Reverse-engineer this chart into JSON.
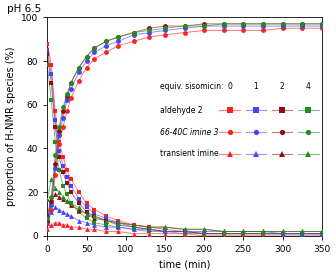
{
  "title": "pH 6.5",
  "xlabel": "time (min)",
  "ylabel": "proportion of H-NMR species (%)",
  "ylim": [
    0,
    100
  ],
  "xlim": [
    0,
    350
  ],
  "xticks": [
    0,
    50,
    100,
    150,
    200,
    250,
    300,
    350
  ],
  "yticks": [
    0,
    20,
    40,
    60,
    80,
    100
  ],
  "colors": {
    "0equiv": "#FF2020",
    "1equiv": "#4444FF",
    "2equiv": "#8B1010",
    "4equiv": "#228B22"
  },
  "line_alpha": 0.5,
  "aldehyde_data": {
    "0equiv": {
      "t": [
        0,
        5,
        10,
        15,
        20,
        25,
        30,
        40,
        50,
        60,
        75,
        90,
        110,
        130,
        150,
        175,
        200,
        225,
        250,
        275,
        300,
        325,
        350
      ],
      "v": [
        88,
        78,
        57,
        43,
        36,
        30,
        26,
        20,
        15,
        12,
        9,
        7,
        5,
        4,
        3,
        2,
        1,
        1,
        1,
        1,
        1,
        1,
        1
      ]
    },
    "1equiv": {
      "t": [
        0,
        5,
        10,
        15,
        20,
        25,
        30,
        40,
        50,
        60,
        75,
        90,
        110,
        130,
        150,
        175,
        200,
        225,
        250,
        275,
        300,
        325,
        350
      ],
      "v": [
        85,
        74,
        53,
        39,
        32,
        27,
        23,
        17,
        13,
        10,
        8,
        6,
        4,
        3,
        2,
        2,
        1,
        1,
        1,
        1,
        1,
        1,
        1
      ]
    },
    "2equiv": {
      "t": [
        0,
        5,
        10,
        15,
        20,
        25,
        30,
        40,
        50,
        60,
        75,
        90,
        110,
        130,
        150,
        175,
        200,
        225,
        250,
        275,
        300,
        325,
        350
      ],
      "v": [
        83,
        70,
        50,
        36,
        29,
        24,
        20,
        15,
        11,
        9,
        7,
        5,
        4,
        3,
        2,
        2,
        1,
        1,
        1,
        1,
        1,
        1,
        1
      ]
    },
    "4equiv": {
      "t": [
        0,
        5,
        10,
        15,
        20,
        25,
        30,
        40,
        50,
        60,
        75,
        90,
        110,
        130,
        150,
        175,
        200,
        225,
        250,
        275,
        300,
        325,
        350
      ],
      "v": [
        78,
        62,
        43,
        30,
        23,
        19,
        15,
        11,
        8,
        6,
        5,
        4,
        3,
        2,
        2,
        1,
        1,
        1,
        1,
        1,
        1,
        1,
        1
      ]
    }
  },
  "imine66_data": {
    "0equiv": {
      "t": [
        0,
        5,
        10,
        15,
        20,
        25,
        30,
        40,
        50,
        60,
        75,
        90,
        110,
        130,
        150,
        175,
        200,
        225,
        250,
        275,
        300,
        325,
        350
      ],
      "v": [
        6,
        12,
        28,
        42,
        50,
        57,
        63,
        71,
        77,
        81,
        84,
        87,
        89,
        91,
        92,
        93,
        94,
        94,
        94,
        94,
        95,
        95,
        95
      ]
    },
    "1equiv": {
      "t": [
        0,
        5,
        10,
        15,
        20,
        25,
        30,
        40,
        50,
        60,
        75,
        90,
        110,
        130,
        150,
        175,
        200,
        225,
        250,
        275,
        300,
        325,
        350
      ],
      "v": [
        7,
        14,
        31,
        46,
        54,
        62,
        67,
        75,
        80,
        84,
        87,
        89,
        92,
        93,
        94,
        95,
        96,
        96,
        96,
        96,
        96,
        96,
        96
      ]
    },
    "2equiv": {
      "t": [
        0,
        5,
        10,
        15,
        20,
        25,
        30,
        40,
        50,
        60,
        75,
        90,
        110,
        130,
        150,
        175,
        200,
        225,
        250,
        275,
        300,
        325,
        350
      ],
      "v": [
        7,
        16,
        33,
        48,
        57,
        64,
        70,
        77,
        82,
        86,
        89,
        91,
        93,
        95,
        96,
        96,
        97,
        97,
        97,
        97,
        97,
        97,
        97
      ]
    },
    "4equiv": {
      "t": [
        0,
        5,
        10,
        15,
        20,
        25,
        30,
        40,
        50,
        60,
        75,
        90,
        110,
        130,
        150,
        175,
        200,
        225,
        250,
        275,
        300,
        325,
        350
      ],
      "v": [
        8,
        18,
        37,
        50,
        59,
        65,
        70,
        77,
        82,
        86,
        89,
        91,
        93,
        94,
        95,
        96,
        96,
        97,
        97,
        97,
        97,
        97,
        97
      ]
    }
  },
  "transient_data": {
    "0equiv": {
      "t": [
        0,
        5,
        10,
        15,
        20,
        25,
        30,
        40,
        50,
        60,
        75,
        90,
        110,
        130,
        150,
        175,
        200,
        225,
        250,
        275,
        300,
        325,
        350
      ],
      "v": [
        3,
        5,
        6,
        6,
        5,
        5,
        4,
        4,
        3,
        3,
        2,
        2,
        1,
        1,
        1,
        1,
        0,
        0,
        0,
        0,
        0,
        0,
        0
      ]
    },
    "1equiv": {
      "t": [
        0,
        5,
        10,
        15,
        20,
        25,
        30,
        40,
        50,
        60,
        75,
        90,
        110,
        130,
        150,
        175,
        200,
        225,
        250,
        275,
        300,
        325,
        350
      ],
      "v": [
        6,
        11,
        13,
        12,
        11,
        10,
        9,
        7,
        6,
        5,
        4,
        4,
        3,
        3,
        2,
        2,
        2,
        2,
        2,
        2,
        1,
        1,
        1
      ]
    },
    "2equiv": {
      "t": [
        0,
        5,
        10,
        15,
        20,
        25,
        30,
        40,
        50,
        60,
        75,
        90,
        110,
        130,
        150,
        175,
        200,
        225,
        250,
        275,
        300,
        325,
        350
      ],
      "v": [
        10,
        16,
        19,
        18,
        17,
        16,
        14,
        12,
        10,
        8,
        7,
        6,
        5,
        4,
        4,
        3,
        3,
        2,
        2,
        2,
        2,
        2,
        2
      ]
    },
    "4equiv": {
      "t": [
        0,
        5,
        10,
        15,
        20,
        25,
        30,
        40,
        50,
        60,
        75,
        90,
        110,
        130,
        150,
        175,
        200,
        225,
        250,
        275,
        300,
        325,
        350
      ],
      "v": [
        17,
        26,
        22,
        20,
        18,
        16,
        15,
        13,
        10,
        9,
        7,
        6,
        5,
        4,
        4,
        3,
        3,
        2,
        2,
        2,
        2,
        2,
        2
      ]
    }
  },
  "legend": {
    "header": "equiv. sisomicin:",
    "equiv_labels": [
      "0",
      "1",
      "2",
      "4"
    ],
    "rows": [
      {
        "label": "aldehyde 2",
        "italic": false,
        "marker": "s"
      },
      {
        "label": "66-40C imine 3",
        "italic": true,
        "marker": "o"
      },
      {
        "label": "transient imine",
        "italic": false,
        "marker": "^"
      }
    ]
  }
}
